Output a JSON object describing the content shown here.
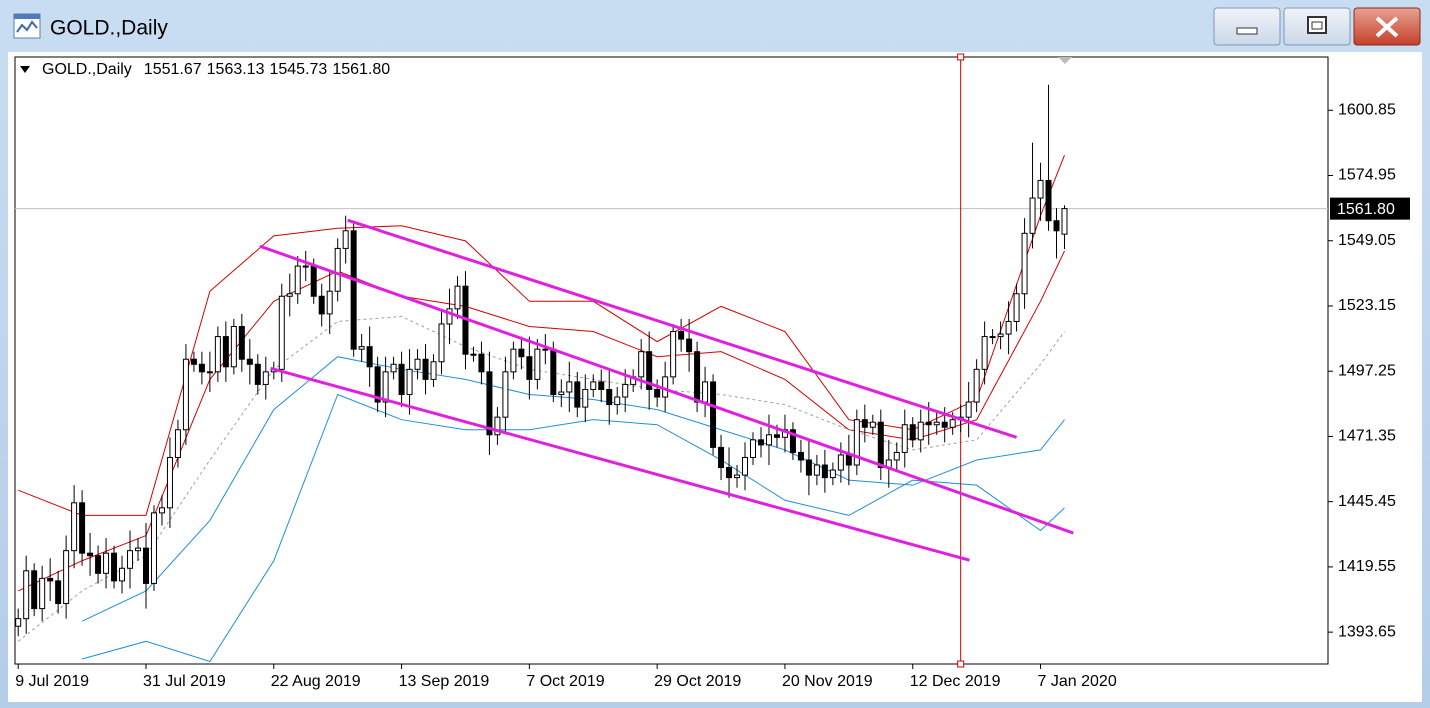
{
  "window": {
    "title": "GOLD.,Daily"
  },
  "chart_data": {
    "type": "candlestick",
    "header": {
      "symbol": "GOLD.,Daily",
      "values": [
        "1551.67",
        "1563.13",
        "1545.73",
        "1561.80"
      ]
    },
    "categories": [
      "9 Jul 2019",
      null,
      null,
      null,
      null,
      null,
      null,
      null,
      null,
      null,
      null,
      null,
      null,
      null,
      null,
      null,
      "31 Jul 2019",
      null,
      null,
      null,
      null,
      null,
      null,
      null,
      null,
      null,
      null,
      null,
      null,
      null,
      null,
      null,
      "22 Aug 2019",
      null,
      null,
      null,
      null,
      null,
      null,
      null,
      null,
      null,
      null,
      null,
      null,
      null,
      null,
      null,
      "13 Sep 2019",
      null,
      null,
      null,
      null,
      null,
      null,
      null,
      null,
      null,
      null,
      null,
      null,
      null,
      null,
      null,
      "7 Oct 2019",
      null,
      null,
      null,
      null,
      null,
      null,
      null,
      null,
      null,
      null,
      null,
      null,
      null,
      null,
      null,
      "29 Oct 2019",
      null,
      null,
      null,
      null,
      null,
      null,
      null,
      null,
      null,
      null,
      null,
      null,
      null,
      null,
      null,
      "20 Nov 2019",
      null,
      null,
      null,
      null,
      null,
      null,
      null,
      null,
      null,
      null,
      null,
      null,
      null,
      null,
      null,
      "12 Dec 2019",
      null,
      null,
      null,
      null,
      null,
      null,
      null,
      null,
      null,
      null,
      null,
      null,
      null,
      null,
      null,
      "7 Jan 2020",
      null,
      null,
      null
    ],
    "open": [
      1396,
      1399,
      1418,
      1403,
      1415,
      1414,
      1405,
      1426,
      1445,
      1425,
      1424,
      1417,
      1425,
      1414,
      1419,
      1426,
      1427,
      1413,
      1441,
      1443,
      1463,
      1474,
      1502,
      1500,
      1497,
      1497,
      1511,
      1499,
      1515,
      1502,
      1500,
      1492,
      1497,
      1498,
      1527,
      1528,
      1539,
      1539,
      1527,
      1520,
      1529,
      1546,
      1553,
      1506,
      1507,
      1499,
      1485,
      1497,
      1500,
      1488,
      1498,
      1502,
      1494,
      1501,
      1516,
      1522,
      1531,
      1504,
      1504,
      1497,
      1472,
      1479,
      1497,
      1506,
      1503,
      1494,
      1506,
      1506,
      1488,
      1489,
      1493,
      1483,
      1490,
      1493,
      1490,
      1484,
      1487,
      1492,
      1495,
      1505,
      1490,
      1487,
      1495,
      1513,
      1510,
      1505,
      1485,
      1493,
      1467,
      1459,
      1455,
      1456,
      1463,
      1470,
      1468,
      1472,
      1471,
      1474,
      1465,
      1462,
      1456,
      1460,
      1455,
      1458,
      1464,
      1460,
      1478,
      1475,
      1477,
      1459,
      1462,
      1465,
      1476,
      1470,
      1477,
      1476,
      1477,
      1475,
      1478,
      1479,
      1485,
      1498,
      1511,
      1511,
      1512,
      1517,
      1528,
      1552,
      1566,
      1573,
      1557,
      1551.67
    ],
    "high": [
      1403,
      1424,
      1421,
      1420,
      1423,
      1418,
      1432,
      1452,
      1450,
      1433,
      1428,
      1431,
      1428,
      1424,
      1434,
      1431,
      1437,
      1444,
      1448,
      1471,
      1478,
      1508,
      1505,
      1505,
      1505,
      1515,
      1517,
      1518,
      1520,
      1510,
      1504,
      1503,
      1501,
      1532,
      1536,
      1543,
      1545,
      1542,
      1532,
      1537,
      1550,
      1559,
      1556,
      1512,
      1515,
      1503,
      1503,
      1503,
      1505,
      1506,
      1506,
      1508,
      1504,
      1521,
      1530,
      1535,
      1537,
      1507,
      1509,
      1505,
      1483,
      1503,
      1509,
      1511,
      1511,
      1510,
      1512,
      1509,
      1494,
      1501,
      1497,
      1496,
      1496,
      1498,
      1498,
      1491,
      1498,
      1498,
      1510,
      1513,
      1494,
      1501,
      1516,
      1518,
      1518,
      1509,
      1499,
      1496,
      1472,
      1467,
      1460,
      1469,
      1473,
      1475,
      1480,
      1476,
      1480,
      1477,
      1470,
      1470,
      1464,
      1466,
      1461,
      1469,
      1472,
      1482,
      1484,
      1480,
      1482,
      1470,
      1469,
      1482,
      1479,
      1482,
      1485,
      1481,
      1483,
      1481,
      1484,
      1493,
      1502,
      1517,
      1514,
      1517,
      1525,
      1532,
      1558,
      1588,
      1580,
      1611,
      1562,
      1563.13
    ],
    "low": [
      1392,
      1393,
      1400,
      1398,
      1406,
      1401,
      1399,
      1419,
      1420,
      1416,
      1413,
      1411,
      1411,
      1409,
      1411,
      1422,
      1403,
      1410,
      1436,
      1435,
      1459,
      1468,
      1497,
      1492,
      1489,
      1493,
      1493,
      1496,
      1497,
      1492,
      1488,
      1486,
      1494,
      1493,
      1519,
      1524,
      1533,
      1524,
      1515,
      1512,
      1525,
      1540,
      1503,
      1501,
      1491,
      1481,
      1479,
      1494,
      1483,
      1480,
      1494,
      1488,
      1491,
      1496,
      1508,
      1518,
      1498,
      1501,
      1492,
      1464,
      1468,
      1473,
      1494,
      1498,
      1486,
      1490,
      1500,
      1485,
      1483,
      1481,
      1479,
      1477,
      1487,
      1485,
      1476,
      1480,
      1481,
      1489,
      1490,
      1482,
      1483,
      1481,
      1492,
      1505,
      1497,
      1481,
      1479,
      1464,
      1454,
      1447,
      1451,
      1450,
      1460,
      1463,
      1460,
      1467,
      1465,
      1462,
      1457,
      1448,
      1452,
      1449,
      1452,
      1453,
      1452,
      1456,
      1469,
      1472,
      1454,
      1451,
      1458,
      1459,
      1467,
      1465,
      1468,
      1472,
      1469,
      1472,
      1473,
      1471,
      1481,
      1492,
      1508,
      1506,
      1504,
      1513,
      1522,
      1546,
      1557,
      1553,
      1542,
      1545.73
    ],
    "close": [
      1399,
      1418,
      1403,
      1415,
      1414,
      1405,
      1426,
      1445,
      1425,
      1424,
      1417,
      1425,
      1414,
      1419,
      1426,
      1427,
      1413,
      1441,
      1443,
      1463,
      1474,
      1502,
      1500,
      1497,
      1497,
      1511,
      1499,
      1515,
      1502,
      1500,
      1492,
      1497,
      1498,
      1527,
      1528,
      1539,
      1539,
      1527,
      1520,
      1529,
      1546,
      1553,
      1506,
      1507,
      1499,
      1485,
      1497,
      1500,
      1488,
      1498,
      1502,
      1494,
      1501,
      1516,
      1522,
      1531,
      1504,
      1504,
      1497,
      1472,
      1479,
      1497,
      1506,
      1503,
      1494,
      1506,
      1506,
      1488,
      1489,
      1493,
      1483,
      1490,
      1493,
      1490,
      1484,
      1487,
      1492,
      1495,
      1505,
      1490,
      1487,
      1495,
      1513,
      1510,
      1505,
      1485,
      1493,
      1467,
      1459,
      1455,
      1456,
      1463,
      1470,
      1468,
      1472,
      1471,
      1474,
      1465,
      1462,
      1456,
      1460,
      1455,
      1458,
      1464,
      1460,
      1478,
      1475,
      1477,
      1459,
      1462,
      1465,
      1476,
      1470,
      1477,
      1476,
      1477,
      1475,
      1478,
      1479,
      1485,
      1498,
      1511,
      1511,
      1512,
      1517,
      1528,
      1552,
      1566,
      1573,
      1557,
      1553,
      1561.8
    ],
    "up_color": "#ffffff",
    "down_color": "#000000",
    "candle_stroke": "#000000",
    "ylim": [
      1381,
      1622
    ],
    "yticks": [
      1600.85,
      1574.95,
      1549.05,
      1523.15,
      1497.25,
      1471.35,
      1445.45,
      1419.55,
      1393.65
    ],
    "grid": false,
    "current_price": {
      "value": 1561.8,
      "label": "1561.80"
    },
    "indicator_x": [
      0,
      8,
      16,
      24,
      32,
      40,
      48,
      56,
      64,
      72,
      80,
      88,
      96,
      104,
      112,
      120,
      128,
      131
    ],
    "indicators": [
      {
        "color": "#d40000",
        "dashed": false,
        "values": [
          1450,
          1440,
          1440,
          1529,
          1551,
          1554,
          1555,
          1549,
          1525,
          1525,
          1509,
          1523,
          1513,
          1478,
          1474,
          1486,
          1559,
          1583
        ]
      },
      {
        "color": "#d40000",
        "dashed": false,
        "values": [
          1410,
          1422,
          1432,
          1494,
          1525,
          1537,
          1527,
          1523,
          1515,
          1513,
          1503,
          1505,
          1494,
          1474,
          1470,
          1478,
          1525,
          1545
        ]
      },
      {
        "color": "#a0a0a0",
        "dashed": true,
        "values": [
          1390,
          1410,
          1424,
          1462,
          1498,
          1517,
          1519,
          1507,
          1498,
          1494,
          1490,
          1488,
          1484,
          1474,
          1466,
          1470,
          1500,
          1513
        ]
      },
      {
        "color": "#1e90d8",
        "dashed": false,
        "values": [
          null,
          1398,
          1410,
          1438,
          1482,
          1503,
          1498,
          1494,
          1488,
          1486,
          1482,
          1474,
          1466,
          1454,
          1452,
          1462,
          1466,
          1478
        ]
      },
      {
        "color": "#1e90d8",
        "dashed": false,
        "values": [
          null,
          1383,
          1390,
          1382,
          1422,
          1488,
          1478,
          1474,
          1474,
          1478,
          1476,
          1462,
          1446,
          1440,
          1454,
          1452,
          1434,
          1443
        ]
      }
    ],
    "trendlines": [
      {
        "color": "#e020e0",
        "x": [
          41.25,
          125
        ],
        "y": [
          1557.2,
          1471.0
        ]
      },
      {
        "color": "#e020e0",
        "x": [
          30.25,
          132.1
        ],
        "y": [
          1546.9,
          1433.0
        ]
      },
      {
        "color": "#e020e0",
        "x": [
          31.6,
          119.1
        ],
        "y": [
          1498.4,
          1422.2
        ]
      }
    ],
    "vline": {
      "x": 118,
      "color": "#d40000"
    }
  }
}
